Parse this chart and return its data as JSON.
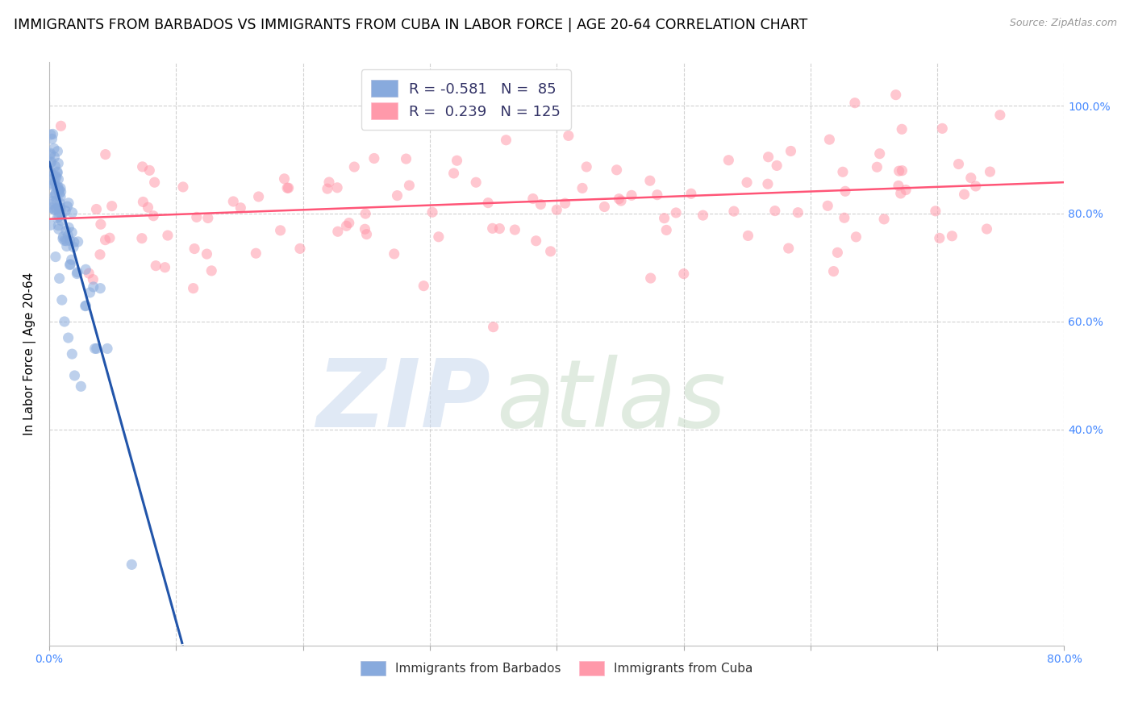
{
  "title": "IMMIGRANTS FROM BARBADOS VS IMMIGRANTS FROM CUBA IN LABOR FORCE | AGE 20-64 CORRELATION CHART",
  "source": "Source: ZipAtlas.com",
  "ylabel": "In Labor Force | Age 20-64",
  "xlim": [
    0.0,
    0.8
  ],
  "ylim": [
    0.0,
    1.08
  ],
  "yticks": [
    0.4,
    0.6,
    0.8,
    1.0
  ],
  "ytick_labels": [
    "40.0%",
    "60.0%",
    "80.0%",
    "100.0%"
  ],
  "xticks": [
    0.0,
    0.1,
    0.2,
    0.3,
    0.4,
    0.5,
    0.6,
    0.7,
    0.8
  ],
  "xtick_labels": [
    "0.0%",
    "",
    "",
    "",
    "",
    "",
    "",
    "",
    "80.0%"
  ],
  "barbados_R": -0.581,
  "barbados_N": 85,
  "cuba_R": 0.239,
  "cuba_N": 125,
  "scatter_color_barbados": "#88AADD",
  "scatter_color_cuba": "#FF99AA",
  "line_color_barbados": "#2255AA",
  "line_color_cuba": "#FF5577",
  "scatter_alpha": 0.55,
  "scatter_size": 90,
  "title_fontsize": 12.5,
  "axis_label_fontsize": 11,
  "tick_fontsize": 10,
  "legend_fontsize": 13,
  "background_color": "#FFFFFF",
  "right_tick_color": "#4488FF",
  "grid_color": "#CCCCCC",
  "barbados_intercept": 0.895,
  "barbados_slope": -8.5,
  "cuba_intercept": 0.79,
  "cuba_slope": 0.085,
  "line_cutoff_solid": 0.105,
  "watermark_zip_color": "#C8D8EE",
  "watermark_atlas_color": "#C8DCC8"
}
